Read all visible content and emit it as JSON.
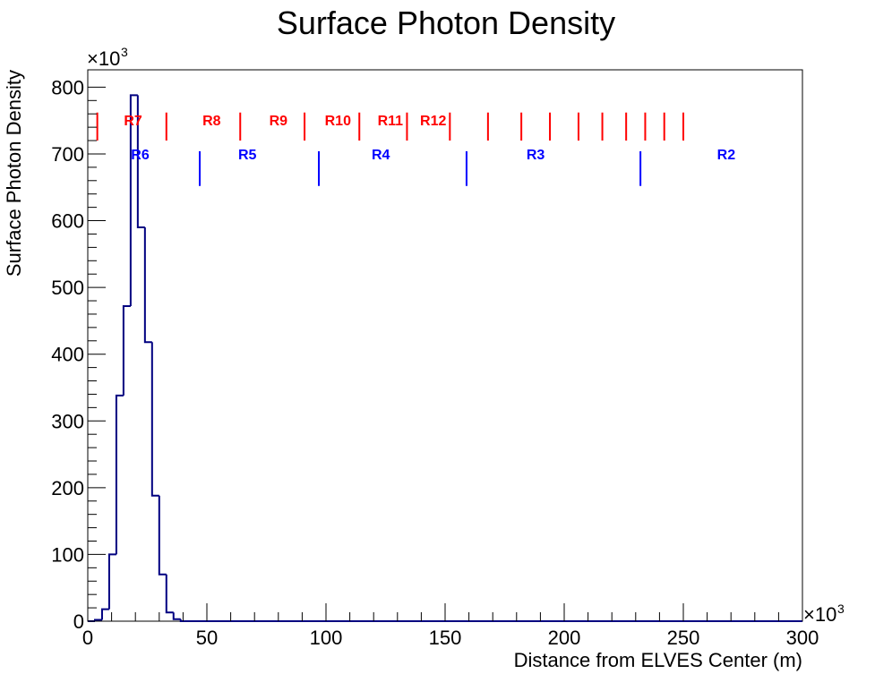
{
  "chart_data": {
    "type": "histogram",
    "title": "Surface Photon Density",
    "xlabel": "Distance from ELVES Center (m)",
    "ylabel": "Surface Photon Density",
    "x_multiplier": "×10",
    "x_multiplier_exp": "3",
    "y_multiplier": "×10",
    "y_multiplier_exp": "3",
    "xlim": [
      0,
      300
    ],
    "ylim": [
      0,
      826
    ],
    "x_ticks": [
      0,
      50,
      100,
      150,
      200,
      250,
      300
    ],
    "x_tick_labels": [
      "0",
      "50",
      "100",
      "150",
      "200",
      "250",
      "300"
    ],
    "y_ticks": [
      0,
      100,
      200,
      300,
      400,
      500,
      600,
      700,
      800
    ],
    "y_tick_labels": [
      "0",
      "100",
      "200",
      "300",
      "400",
      "500",
      "600",
      "700",
      "800"
    ],
    "grid": false,
    "line_color": "#000080",
    "bins": {
      "edges": [
        0,
        3,
        6,
        9,
        12,
        15,
        18,
        21,
        24,
        27,
        30,
        33,
        36,
        39,
        300
      ],
      "values": [
        0,
        2,
        18,
        100,
        338,
        472,
        788,
        590,
        418,
        188,
        70,
        13,
        3,
        0
      ]
    },
    "red_markers": {
      "color": "#ff0000",
      "y_range": [
        762,
        720
      ],
      "positions": [
        4,
        33,
        64,
        91,
        114,
        134,
        152,
        168,
        182,
        194,
        206,
        216,
        226,
        234,
        242,
        250
      ],
      "labels": [
        {
          "text": "R7",
          "x": 19
        },
        {
          "text": "R8",
          "x": 52
        },
        {
          "text": "R9",
          "x": 80
        },
        {
          "text": "R10",
          "x": 105
        },
        {
          "text": "R11",
          "x": 127
        },
        {
          "text": "R12",
          "x": 145
        }
      ]
    },
    "blue_markers": {
      "color": "#0000ff",
      "y_range": [
        704,
        652
      ],
      "positions": [
        47,
        97,
        159,
        232
      ],
      "labels": [
        {
          "text": "R6",
          "x": 22
        },
        {
          "text": "R5",
          "x": 67
        },
        {
          "text": "R4",
          "x": 123
        },
        {
          "text": "R3",
          "x": 188
        },
        {
          "text": "R2",
          "x": 268
        }
      ]
    }
  }
}
